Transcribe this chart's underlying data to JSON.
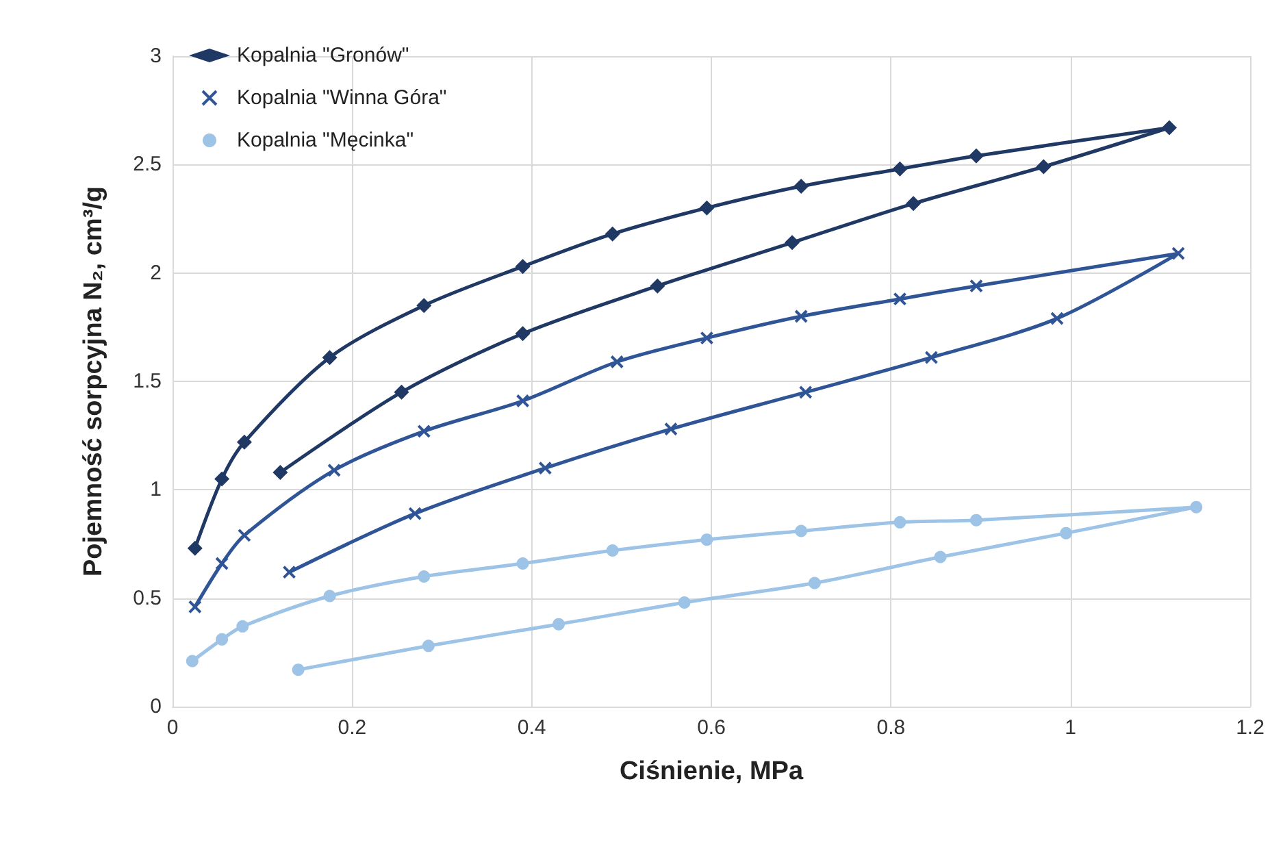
{
  "chart_data": {
    "type": "line",
    "xlabel": "Ciśnienie, MPa",
    "ylabel": "Pojemność sorpcyjna N₂, cm³/g",
    "xlim": [
      0,
      1.2
    ],
    "xticks": [
      0,
      0.2,
      0.4,
      0.6,
      0.8,
      1,
      1.2
    ],
    "ylim": [
      0,
      3
    ],
    "yticks": [
      0,
      0.5,
      1,
      1.5,
      2,
      2.5,
      3
    ],
    "grid": true,
    "legend": "top left",
    "line_style": "solid",
    "series": [
      {
        "name": "Kopalnia \"Gronów\"",
        "color": "#1f3864",
        "marker": "diamond",
        "x": [
          0.12,
          0.255,
          0.39,
          0.54,
          0.69,
          0.825,
          0.97,
          1.11,
          0.895,
          0.81,
          0.7,
          0.595,
          0.49,
          0.39,
          0.28,
          0.175,
          0.08,
          0.055,
          0.025
        ],
        "values": [
          1.08,
          1.45,
          1.72,
          1.94,
          2.14,
          2.32,
          2.49,
          2.67,
          2.54,
          2.48,
          2.4,
          2.3,
          2.18,
          2.03,
          1.85,
          1.61,
          1.22,
          1.05,
          0.73
        ]
      },
      {
        "name": "Kopalnia \"Winna Góra\"",
        "color": "#2f5597",
        "marker": "cross",
        "x": [
          0.13,
          0.27,
          0.415,
          0.555,
          0.705,
          0.845,
          0.985,
          1.12,
          0.895,
          0.81,
          0.7,
          0.595,
          0.495,
          0.39,
          0.28,
          0.18,
          0.08,
          0.055,
          0.025
        ],
        "values": [
          0.62,
          0.89,
          1.1,
          1.28,
          1.45,
          1.61,
          1.79,
          2.09,
          1.94,
          1.88,
          1.8,
          1.7,
          1.59,
          1.41,
          1.27,
          1.09,
          0.79,
          0.66,
          0.46
        ]
      },
      {
        "name": "Kopalnia \"Męcinka\"",
        "color": "#9dc3e6",
        "marker": "circle",
        "x": [
          0.14,
          0.285,
          0.43,
          0.57,
          0.715,
          0.855,
          0.995,
          1.14,
          0.895,
          0.81,
          0.7,
          0.595,
          0.49,
          0.39,
          0.28,
          0.175,
          0.078,
          0.055,
          0.022
        ],
        "values": [
          0.17,
          0.28,
          0.38,
          0.48,
          0.57,
          0.69,
          0.8,
          0.92,
          0.86,
          0.85,
          0.81,
          0.77,
          0.72,
          0.66,
          0.6,
          0.51,
          0.37,
          0.31,
          0.21
        ]
      }
    ]
  }
}
